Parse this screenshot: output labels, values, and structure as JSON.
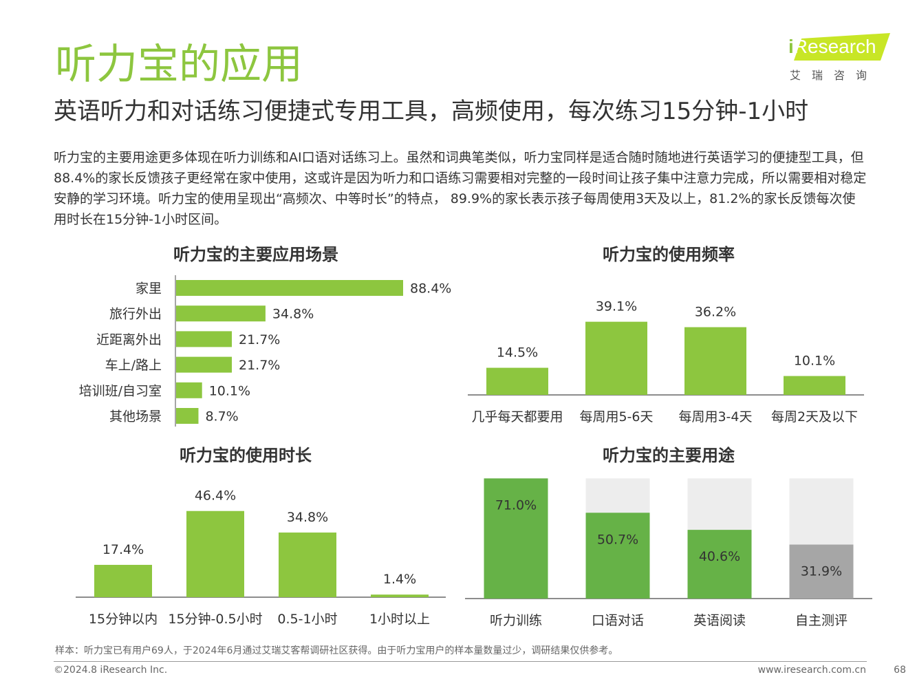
{
  "header": {
    "title": "听力宝的应用",
    "subtitle": "英语听力和对话练习便捷式专用工具，高频使用，每次练习15分钟-1小时"
  },
  "logo": {
    "prefix": "i",
    "name": "Research",
    "sub": "艾瑞咨询"
  },
  "body_text": "听力宝的主要用途更多体现在听力训练和AI口语对话练习上。虽然和词典笔类似，听力宝同样是适合随时随地进行英语学习的便捷型工具，但88.4%的家长反馈孩子更经常在家中使用，这或许是因为听力和口语练习需要相对完整的一段时间让孩子集中注意力完成，所以需要相对稳定安静的学习环境。听力宝的使用呈现出“高频次、中等时长”的特点， 89.9%的家长表示孩子每周使用3天及以上，81.2%的家长反馈每次使用时长在15分钟-1小时区间。",
  "colors": {
    "green": "#8dc63f",
    "dark_green": "#66b247",
    "gray": "#a6a6a6",
    "light_gray": "#ededed"
  },
  "chart_data": [
    {
      "type": "bar",
      "orientation": "horizontal",
      "title": "听力宝的主要应用场景",
      "categories": [
        "家里",
        "旅行外出",
        "近距离外出",
        "车上/路上",
        "培训班/自习室",
        "其他场景"
      ],
      "values": [
        88.4,
        34.8,
        21.7,
        21.7,
        10.1,
        8.7
      ],
      "labels": [
        "88.4%",
        "34.8%",
        "21.7%",
        "21.7%",
        "10.1%",
        "8.7%"
      ],
      "unit": "%"
    },
    {
      "type": "bar",
      "title": "听力宝的使用频率",
      "categories": [
        "几乎每天都要用",
        "每周用5-6天",
        "每周用3-4天",
        "每周2天及以下"
      ],
      "values": [
        14.5,
        39.1,
        36.2,
        10.1
      ],
      "labels": [
        "14.5%",
        "39.1%",
        "36.2%",
        "10.1%"
      ],
      "unit": "%"
    },
    {
      "type": "bar",
      "title": "听力宝的使用时长",
      "categories": [
        "15分钟以内",
        "15分钟-0.5小时",
        "0.5-1小时",
        "1小时以上"
      ],
      "values": [
        17.4,
        46.4,
        34.8,
        1.4
      ],
      "labels": [
        "17.4%",
        "46.4%",
        "34.8%",
        "1.4%"
      ],
      "unit": "%"
    },
    {
      "type": "bar",
      "title": "听力宝的主要用途",
      "categories": [
        "听力训练",
        "口语对话",
        "英语阅读",
        "自主测评"
      ],
      "values": [
        71.0,
        50.7,
        40.6,
        31.9
      ],
      "labels": [
        "71.0%",
        "50.7%",
        "40.6%",
        "31.9%"
      ],
      "background_max": 71.0,
      "bar_colors": [
        "#66b247",
        "#66b247",
        "#66b247",
        "#a6a6a6"
      ],
      "unit": "%"
    }
  ],
  "footer": {
    "note": "样本：听力宝已有用户69人，于2024年6月通过艾瑞艾客帮调研社区获得。由于听力宝用户的样本量数量过少，调研结果仅供参考。",
    "copyright": "©2024.8 iResearch Inc.",
    "website": "www.iresearch.com.cn",
    "page": "68"
  }
}
